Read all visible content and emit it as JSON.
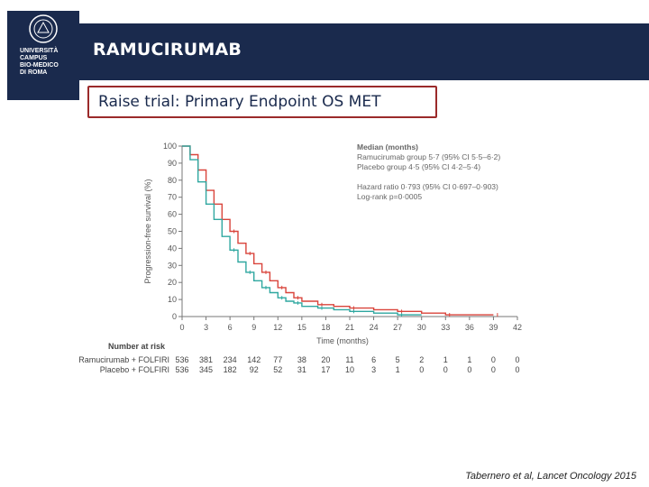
{
  "header": {
    "title": "RAMUCIRUMAB"
  },
  "logo": {
    "icon": "university-seal-icon",
    "text": "UNIVERSITÀ\nCAMPUS\nBIO-MEDICO\nDI ROMA"
  },
  "slide": {
    "subtitle": "Raise trial: Primary Endpoint OS MET",
    "citation": "Tabernero et al, Lancet Oncology 2015"
  },
  "colors": {
    "header_bg": "#1a2a4d",
    "subtitle_border": "#9b2a2a",
    "ramucirumab": "#d9443b",
    "placebo": "#2fa7a0"
  },
  "chart_data": {
    "type": "line",
    "xlabel": "Time (months)",
    "ylabel": "Progression-free survival (%)",
    "xlim": [
      0,
      42
    ],
    "ylim": [
      0,
      100
    ],
    "x_ticks": [
      0,
      3,
      6,
      9,
      12,
      15,
      18,
      21,
      24,
      27,
      30,
      33,
      36,
      39,
      42
    ],
    "y_ticks": [
      0,
      10,
      20,
      30,
      40,
      50,
      60,
      70,
      80,
      90,
      100
    ],
    "legend": {
      "title": "Median (months)",
      "lines": [
        "Ramucirumab group 5·7 (95% CI 5·5–6·2)",
        "Placebo group 4·5 (95% CI 4·2–5·4)",
        "",
        "Hazard ratio 0·793 (95% CI 0·697–0·903)",
        "Log-rank p=0·0005"
      ]
    },
    "series": [
      {
        "name": "Ramucirumab + FOLFIRI",
        "color": "#d9443b",
        "x": [
          0,
          1,
          2,
          3,
          4,
          5,
          6,
          7,
          8,
          9,
          10,
          11,
          12,
          13,
          14,
          15,
          17,
          19,
          21,
          24,
          27,
          30,
          33,
          36,
          39
        ],
        "y": [
          100,
          95,
          86,
          74,
          66,
          57,
          50,
          43,
          37,
          31,
          26,
          21,
          17,
          14,
          11,
          9,
          7,
          6,
          5,
          4,
          3,
          2,
          1,
          1,
          1
        ]
      },
      {
        "name": "Placebo + FOLFIRI",
        "color": "#2fa7a0",
        "x": [
          0,
          1,
          2,
          3,
          4,
          5,
          6,
          7,
          8,
          9,
          10,
          11,
          12,
          13,
          14,
          15,
          17,
          19,
          21,
          24,
          27,
          30
        ],
        "y": [
          100,
          92,
          79,
          66,
          57,
          47,
          39,
          32,
          26,
          21,
          17,
          14,
          11,
          9,
          8,
          6,
          5,
          4,
          3,
          2,
          1,
          1
        ]
      }
    ],
    "number_at_risk": {
      "title": "Number at risk",
      "rows": [
        {
          "label": "Ramucirumab + FOLFIRI",
          "values": [
            536,
            381,
            234,
            142,
            77,
            38,
            20,
            11,
            6,
            5,
            2,
            1,
            1,
            0,
            0
          ]
        },
        {
          "label": "Placebo + FOLFIRI",
          "values": [
            536,
            345,
            182,
            92,
            52,
            31,
            17,
            10,
            3,
            1,
            0,
            0,
            0,
            0,
            0
          ]
        }
      ]
    }
  }
}
